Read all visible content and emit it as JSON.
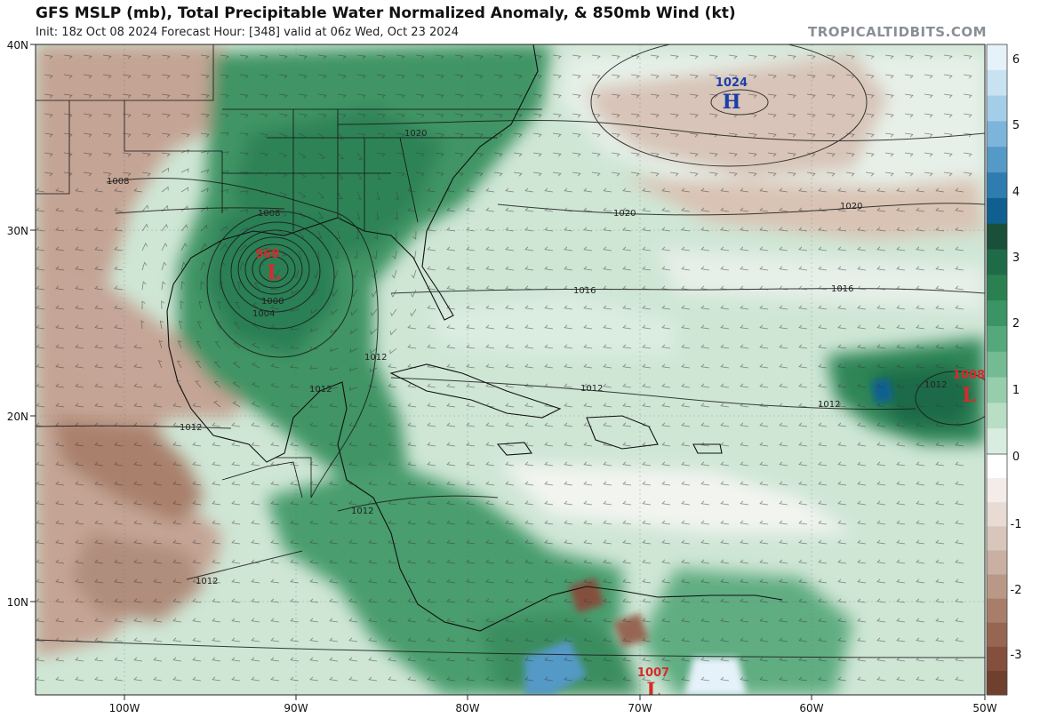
{
  "header": {
    "title": "GFS MSLP (mb), Total Precipitable Water Normalized Anomaly, & 850mb Wind (kt)",
    "subtitle": "Init: 18z Oct 08 2024   Forecast Hour: [348]   valid at 06z Wed, Oct 23 2024",
    "source": "TROPICALTIDBITS.COM"
  },
  "map": {
    "lat_labels": [
      "40N",
      "30N",
      "20N",
      "10N"
    ],
    "lon_labels": [
      "100W",
      "90W",
      "80W",
      "70W",
      "60W",
      "50W"
    ],
    "colorbar": {
      "labels": [
        "6",
        "5",
        "4",
        "3",
        "2",
        "1",
        "0",
        "-1",
        "-2",
        "-3"
      ],
      "positive_colors": [
        "#e6f2fa",
        "#c8e2f2",
        "#a4cde8",
        "#7cb4da",
        "#5599c6",
        "#2f7db0",
        "#0f6091",
        "#1a4f3a",
        "#1f6b47",
        "#2a8050",
        "#3a9464",
        "#55a87a",
        "#74ba92",
        "#96cdab",
        "#b8dec5",
        "#d8eddf"
      ],
      "negative_colors": [
        "#ffffff",
        "#f3ece8",
        "#e7dbd4",
        "#d8c6bb",
        "#c9b0a2",
        "#b99887",
        "#a87e6b",
        "#966652",
        "#844f3d",
        "#70402f"
      ]
    },
    "pressure_centers": [
      {
        "type": "H",
        "value": "1024",
        "color": "#1b3fa8"
      },
      {
        "type": "L",
        "value": "968",
        "color": "#d62b2b"
      },
      {
        "type": "L",
        "value": "1008",
        "color": "#d62b2b"
      },
      {
        "type": "L",
        "value": "1007",
        "color": "#d62b2b"
      }
    ],
    "isobar_labels": [
      "1008",
      "1008",
      "1020",
      "1020",
      "1020",
      "1016",
      "1016",
      "1012",
      "1012",
      "1012",
      "1012",
      "1012",
      "1012",
      "1012",
      "1012",
      "1004",
      "1000"
    ]
  }
}
